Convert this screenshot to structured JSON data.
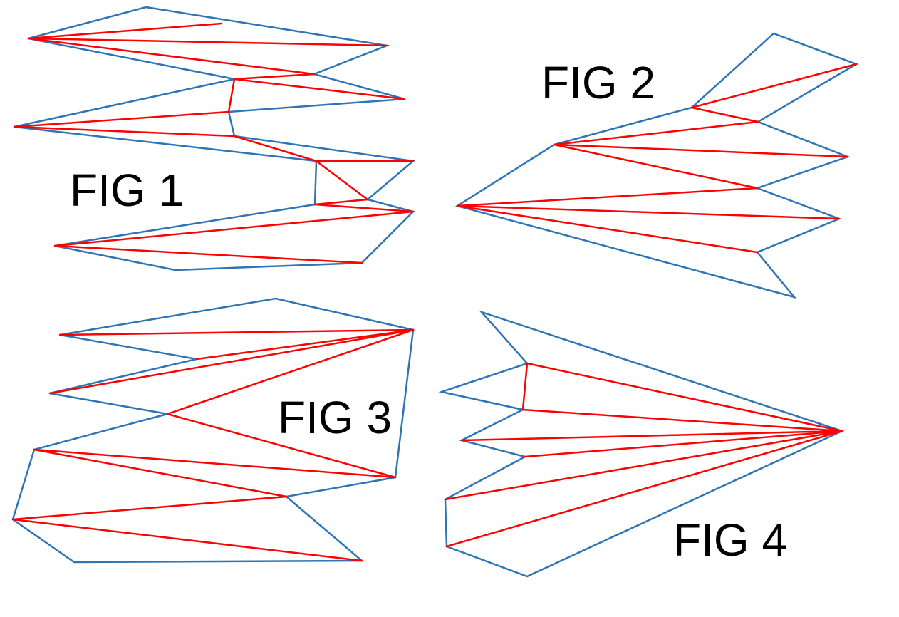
{
  "colors": {
    "boundary": "#2e75b6",
    "diagonal": "#ff0000",
    "label": "#000000",
    "background": "#ffffff"
  },
  "figures": [
    {
      "id": "fig1",
      "label": "FIG 1"
    },
    {
      "id": "fig2",
      "label": "FIG 2"
    },
    {
      "id": "fig3",
      "label": "FIG 3"
    },
    {
      "id": "fig4",
      "label": "FIG 4"
    }
  ]
}
